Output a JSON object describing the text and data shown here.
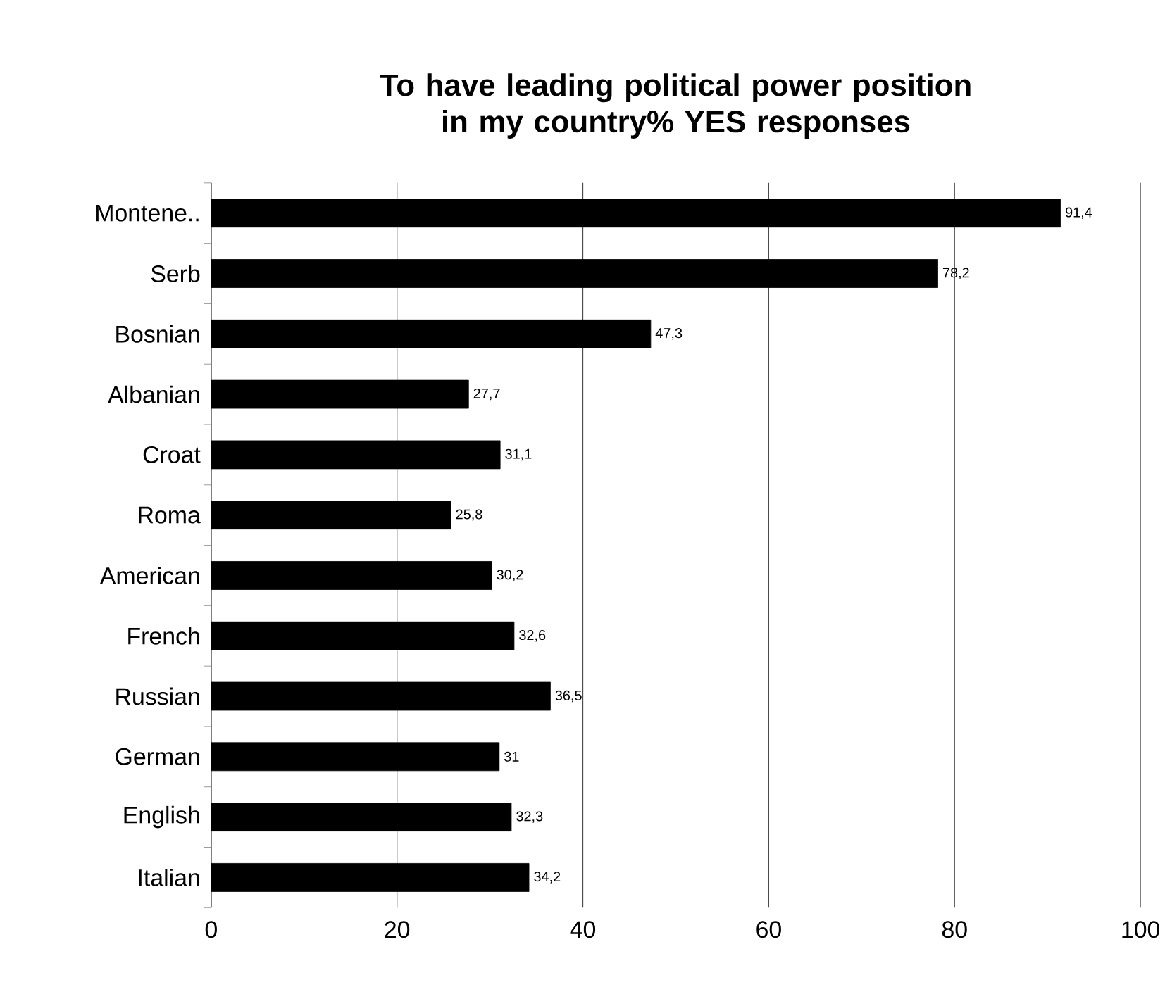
{
  "chart_data": {
    "type": "bar",
    "orientation": "horizontal",
    "title": "To have leading political power position in my country% YES responses",
    "categories": [
      "Montene..",
      "Serb",
      "Bosnian",
      "Albanian",
      "Croat",
      "Roma",
      "American",
      "French",
      "Russian",
      "German",
      "English",
      "Italian"
    ],
    "values": [
      91.4,
      78.2,
      47.3,
      27.7,
      31.1,
      25.8,
      30.2,
      32.6,
      36.5,
      31,
      32.3,
      34.2
    ],
    "value_labels": [
      "91,4",
      "78,2",
      "47,3",
      "27,7",
      "31,1",
      "25,8",
      "30,2",
      "32,6",
      "36,5",
      "31",
      "32,3",
      "34,2"
    ],
    "color": "#000000",
    "xlim": [
      0,
      100
    ],
    "xticks": [
      0,
      20,
      40,
      60,
      80,
      100
    ],
    "grid": "x"
  }
}
